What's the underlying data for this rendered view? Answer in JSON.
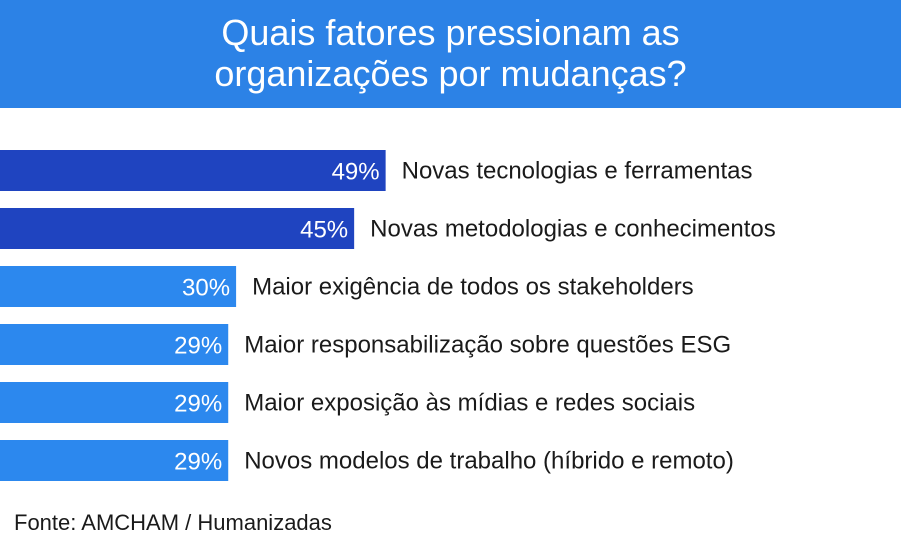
{
  "title": {
    "line1": "Quais fatores pressionam as",
    "line2": "organizações por mudanças?"
  },
  "source": "Fonte: AMCHAM / Humanizadas",
  "colors": {
    "header": "#2c82e6",
    "bar_dark": "#1f44c0",
    "bar_light": "#2c88ee",
    "value_text": "#ffffff",
    "label_text": "#1a1a1a"
  },
  "chart_data": {
    "type": "bar",
    "orientation": "horizontal",
    "categories": [
      "Novas tecnologias e ferramentas",
      "Novas metodologias e conhecimentos",
      "Maior exigência de todos os stakeholders",
      "Maior responsabilização sobre questões ESG",
      "Maior exposição às mídias e redes sociais",
      "Novos modelos de trabalho (híbrido e remoto)"
    ],
    "values": [
      49,
      45,
      30,
      29,
      29,
      29
    ],
    "value_labels": [
      "49%",
      "45%",
      "30%",
      "29%",
      "29%",
      "29%"
    ],
    "highlight_top_n": 2,
    "xlim": [
      0,
      100
    ],
    "grid": false,
    "legend": "none"
  }
}
